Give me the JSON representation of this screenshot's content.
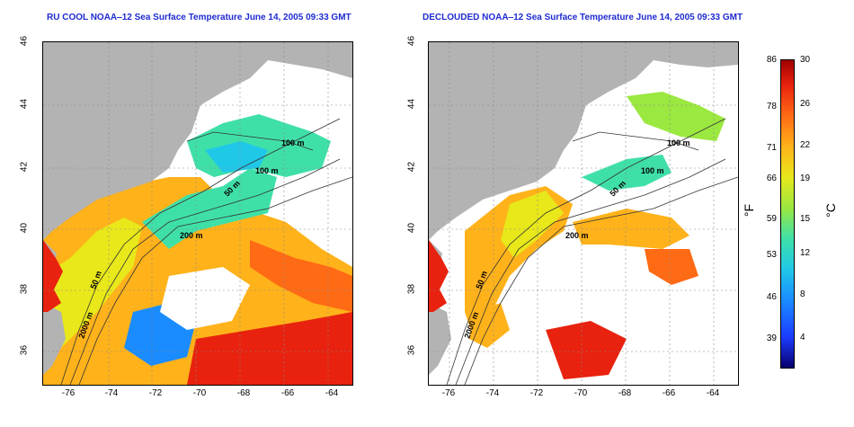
{
  "left_panel": {
    "title": "RU COOL NOAA‒12 Sea Surface Temperature June 14, 2005 09:33 GMT"
  },
  "right_panel": {
    "title": "DECLOUDED NOAA‒12 Sea Surface Temperature June 14, 2005 09:33 GMT"
  },
  "axes": {
    "lat_ticks": [
      "46",
      "44",
      "42",
      "40",
      "38",
      "36"
    ],
    "lon_ticks": [
      "-76",
      "-74",
      "-72",
      "-70",
      "-68",
      "-66",
      "-64"
    ]
  },
  "contour_labels": {
    "c100_upper": "100 m",
    "c100_lower": "100 m",
    "c50": "50 m",
    "c200": "200 m",
    "c50_south": "50 m",
    "c2000": "2000 m"
  },
  "colorbar": {
    "fahrenheit_ticks": [
      "86",
      "78",
      "71",
      "66",
      "59",
      "53",
      "46",
      "39"
    ],
    "celsius_ticks": [
      "30",
      "26",
      "22",
      "19",
      "15",
      "12",
      "8",
      "4"
    ],
    "fahrenheit_unit": "°F",
    "celsius_unit": "°C",
    "colors": [
      "#08006e",
      "#1b3cff",
      "#1a8cff",
      "#20c8e8",
      "#3fe0a8",
      "#9be840",
      "#e8e81a",
      "#ffb21a",
      "#ff6a14",
      "#e8220e",
      "#a00000"
    ]
  },
  "map_colors": {
    "land": "#b3b3b3",
    "cloud": "#ffffff"
  }
}
